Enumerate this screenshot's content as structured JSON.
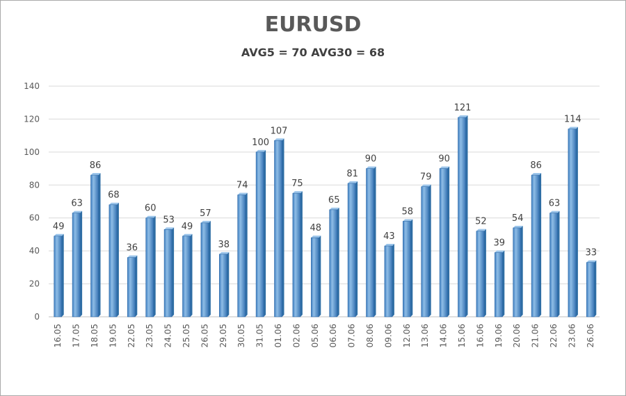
{
  "chart_data": {
    "type": "bar",
    "title": "EURUSD",
    "subtitle": "AVG5 = 70 AVG30 = 68",
    "categories": [
      "16.05",
      "17.05",
      "18.05",
      "19.05",
      "22.05",
      "23.05",
      "24.05",
      "25.05",
      "26.05",
      "29.05",
      "30.05",
      "31.05",
      "01.06",
      "02.06",
      "05.06",
      "06.06",
      "07.06",
      "08.06",
      "09.06",
      "12.06",
      "13.06",
      "14.06",
      "15.06",
      "16.06",
      "19.06",
      "20.06",
      "21.06",
      "22.06",
      "23.06",
      "26.06"
    ],
    "values": [
      49,
      63,
      86,
      68,
      36,
      60,
      53,
      49,
      57,
      38,
      74,
      100,
      107,
      75,
      48,
      65,
      81,
      90,
      43,
      58,
      79,
      90,
      121,
      52,
      39,
      54,
      86,
      63,
      114,
      33
    ],
    "ylim": [
      0,
      140
    ],
    "yticks": [
      0,
      20,
      40,
      60,
      80,
      100,
      120,
      140
    ],
    "grid": true,
    "data_labels": true,
    "bar_color": "#5b9bd5",
    "bar_color_dark": "#2e6da4"
  }
}
